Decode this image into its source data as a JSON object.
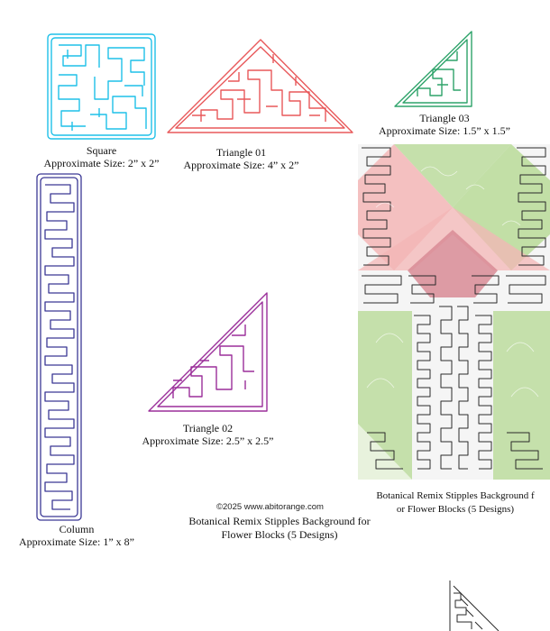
{
  "colors": {
    "square": "#1ec0e8",
    "triangle_01": "#e8585a",
    "triangle_03": "#2ea36a",
    "column": "#3b3895",
    "triangle_02": "#9b2f9a",
    "block_line": "#2a2a2a",
    "leaf_green": "#b9db98",
    "petal_pink": "#f3b6b6",
    "petal_dark": "#d88b95"
  },
  "designs": {
    "square": {
      "name": "Square",
      "size": "Approximate Size: 2” x 2”"
    },
    "triangle_01": {
      "name": "Triangle 01",
      "size": "Approximate Size: 4” x 2”"
    },
    "triangle_03": {
      "name": "Triangle 03",
      "size": "Approximate Size: 1.5” x 1.5”"
    },
    "column": {
      "name": "Column",
      "size": "Approximate Size: 1” x 8”"
    },
    "triangle_02": {
      "name": "Triangle 02",
      "size": "Approximate Size: 2.5” x 2.5”"
    }
  },
  "copyright": "©2025 www.abitorange.com",
  "product_title": {
    "line1": "Botanical Remix Stipples Background for",
    "line2": "Flower Blocks (5 Designs)"
  },
  "example_title": {
    "line1": "Botanical Remix Stipples Background f",
    "line2": "or Flower Blocks (5 Designs)"
  }
}
